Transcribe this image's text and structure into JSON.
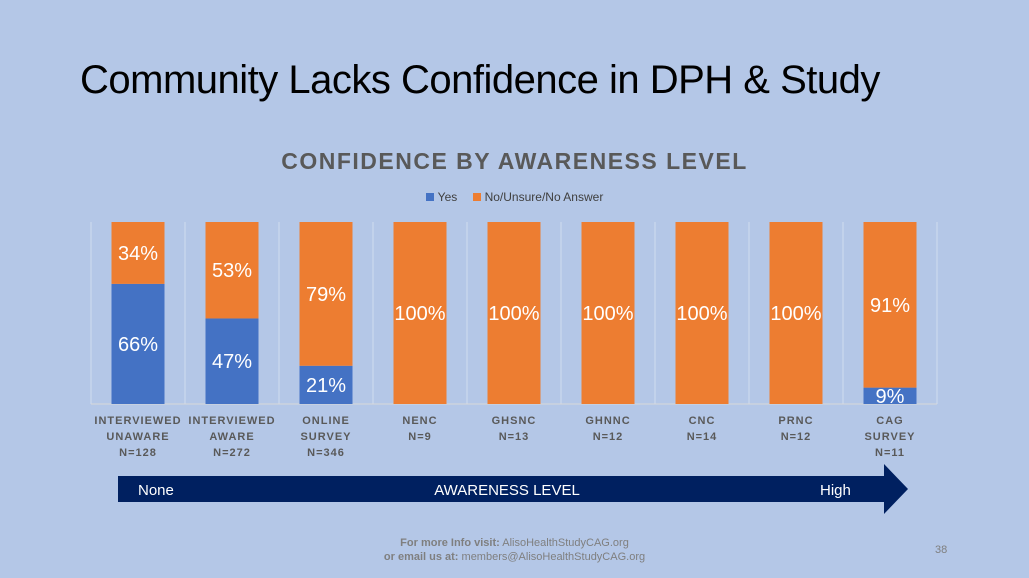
{
  "slide": {
    "title": "Community Lacks Confidence in DPH & Study",
    "page_number": "38"
  },
  "footer": {
    "line1_label": "For more Info visit:",
    "line1_value": "AlisoHealthStudyCAG.org",
    "line2_label": "or email us at:",
    "line2_value": "members@AlisoHealthStudyCAG.org"
  },
  "arrow": {
    "left_label": "None",
    "center_label": "AWARENESS LEVEL",
    "right_label": "High",
    "color": "#002060"
  },
  "chart_data": {
    "type": "bar",
    "stacked": true,
    "title": "CONFIDENCE BY AWARENESS LEVEL",
    "legend_position": "top",
    "categories": [
      [
        "INTERVIEWED",
        "UNAWARE",
        "N=128"
      ],
      [
        "INTERVIEWED",
        "AWARE",
        "N=272"
      ],
      [
        "ONLINE",
        "SURVEY",
        "N=346"
      ],
      [
        "NENC",
        "N=9"
      ],
      [
        "GHSNC",
        "N=13"
      ],
      [
        "GHNNC",
        "N=12"
      ],
      [
        "CNC",
        "N=14"
      ],
      [
        "PRNC",
        "N=12"
      ],
      [
        "CAG",
        "SURVEY",
        "N=11"
      ]
    ],
    "series": [
      {
        "name": "Yes",
        "color": "#4472c4",
        "values": [
          66,
          47,
          21,
          0,
          0,
          0,
          0,
          0,
          9
        ]
      },
      {
        "name": "No/Unsure/No Answer",
        "color": "#ed7d31",
        "values": [
          34,
          53,
          79,
          100,
          100,
          100,
          100,
          100,
          91
        ]
      }
    ],
    "ylim": [
      0,
      100
    ],
    "grid": true
  }
}
